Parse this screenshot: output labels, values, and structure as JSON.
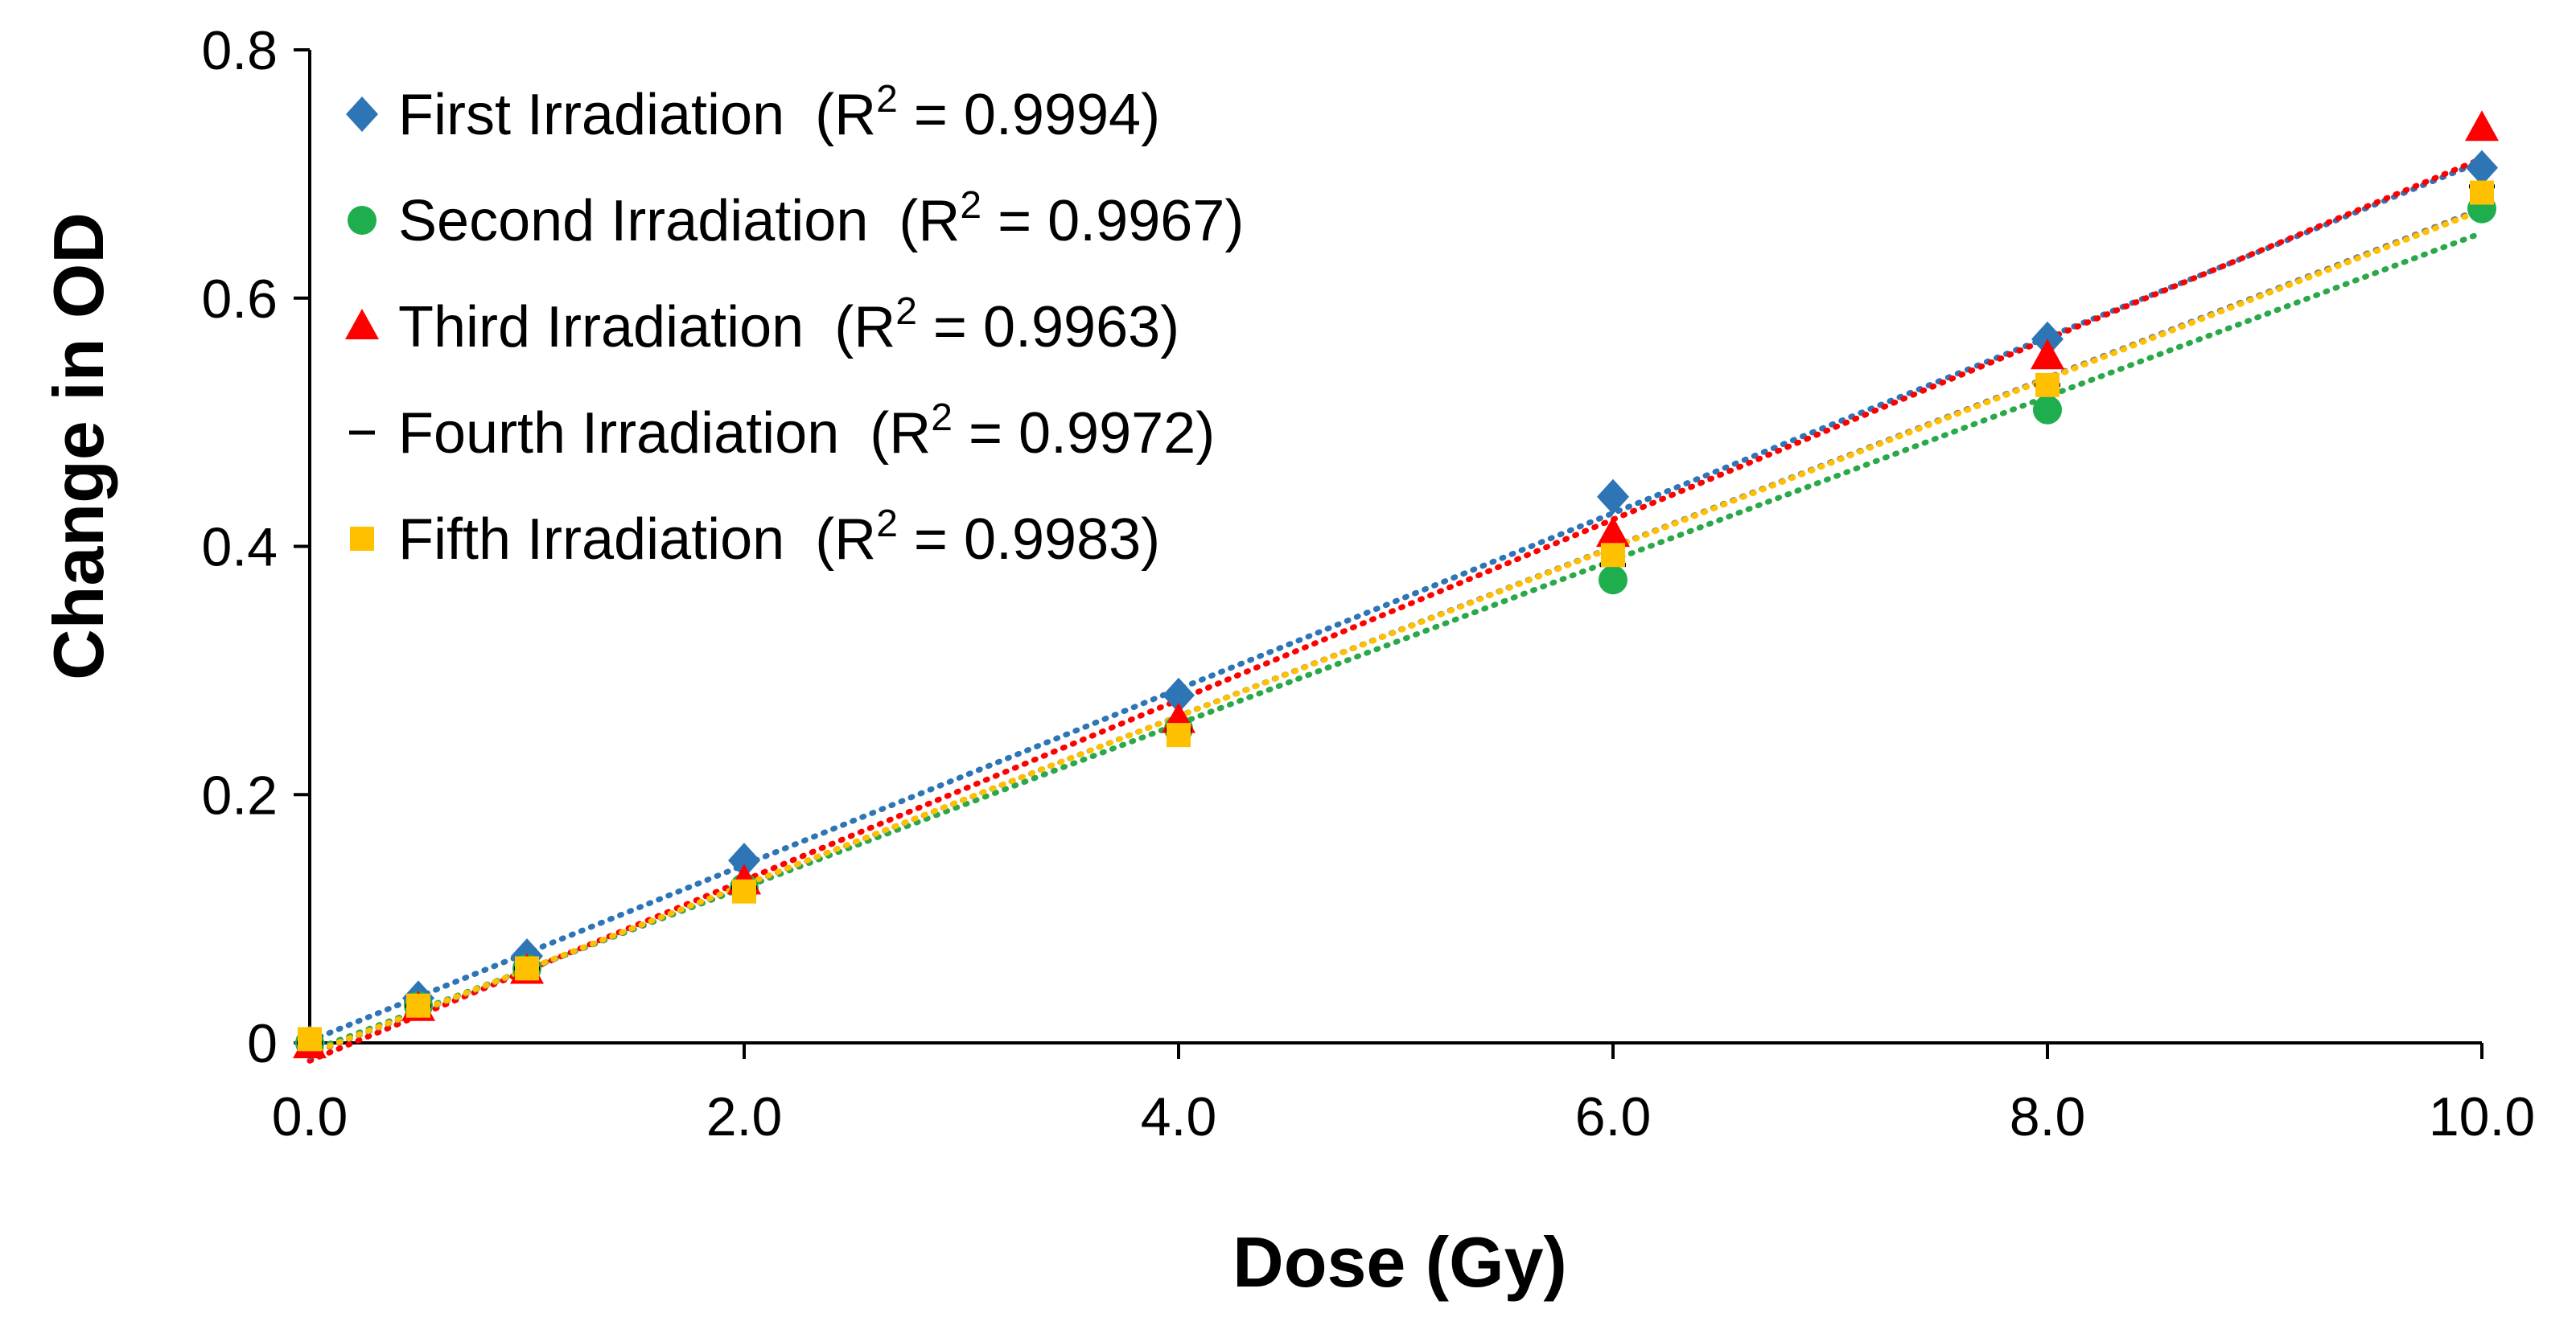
{
  "chart_data": {
    "type": "scatter",
    "xlabel": "Dose (Gy)",
    "ylabel": "Change in OD",
    "xlim": [
      0,
      10
    ],
    "ylim": [
      0,
      0.8
    ],
    "x_ticks": [
      {
        "value": 0,
        "label": "0.0"
      },
      {
        "value": 2,
        "label": "2.0"
      },
      {
        "value": 4,
        "label": "4.0"
      },
      {
        "value": 6,
        "label": "6.0"
      },
      {
        "value": 8,
        "label": "8.0"
      },
      {
        "value": 10,
        "label": "10.0"
      }
    ],
    "y_ticks": [
      {
        "value": 0,
        "label": "0"
      },
      {
        "value": 0.2,
        "label": "0.2"
      },
      {
        "value": 0.4,
        "label": "0.4"
      },
      {
        "value": 0.6,
        "label": "0.6"
      },
      {
        "value": 0.8,
        "label": "0.8"
      }
    ],
    "grid": false,
    "legend_position": "top-left",
    "trendlines": "linear, dotted",
    "x": [
      0,
      0.5,
      1,
      2,
      4,
      6,
      8,
      10
    ],
    "series": [
      {
        "name": "First Irradiation",
        "r2": "(R2 = 0.9994)",
        "marker": "diamond",
        "color": "#2E75B6",
        "trend_color": "#2E75B6",
        "values": [
          0.0,
          0.036,
          0.07,
          0.147,
          0.28,
          0.44,
          0.567,
          0.705
        ]
      },
      {
        "name": "Second Irradiation",
        "r2": "(R2 = 0.9967)",
        "marker": "circle",
        "color": "#1FAE4E",
        "trend_color": "#2BA84A",
        "values": [
          0.0,
          0.03,
          0.06,
          0.125,
          0.253,
          0.373,
          0.51,
          0.672
        ]
      },
      {
        "name": "Third Irradiation",
        "r2": "(R2 = 0.9963)",
        "marker": "triangle",
        "color": "#FF0000",
        "trend_color": "#FF0000",
        "values": [
          -0.002,
          0.028,
          0.058,
          0.13,
          0.26,
          0.41,
          0.553,
          0.737
        ]
      },
      {
        "name": "Fourth Irradiation",
        "r2": "(R2 = 0.9972)",
        "marker": "dash",
        "color": "#000000",
        "trend_color": "#7F7F7F",
        "values": [
          0.0,
          0.03,
          0.06,
          0.125,
          0.252,
          0.385,
          0.53,
          0.69
        ]
      },
      {
        "name": "Fifth Irradiation",
        "r2": "(R2 = 0.9983)",
        "marker": "square",
        "color": "#FFC000",
        "trend_color": "#FFC000",
        "values": [
          0.003,
          0.03,
          0.06,
          0.122,
          0.248,
          0.393,
          0.53,
          0.685
        ]
      }
    ]
  }
}
